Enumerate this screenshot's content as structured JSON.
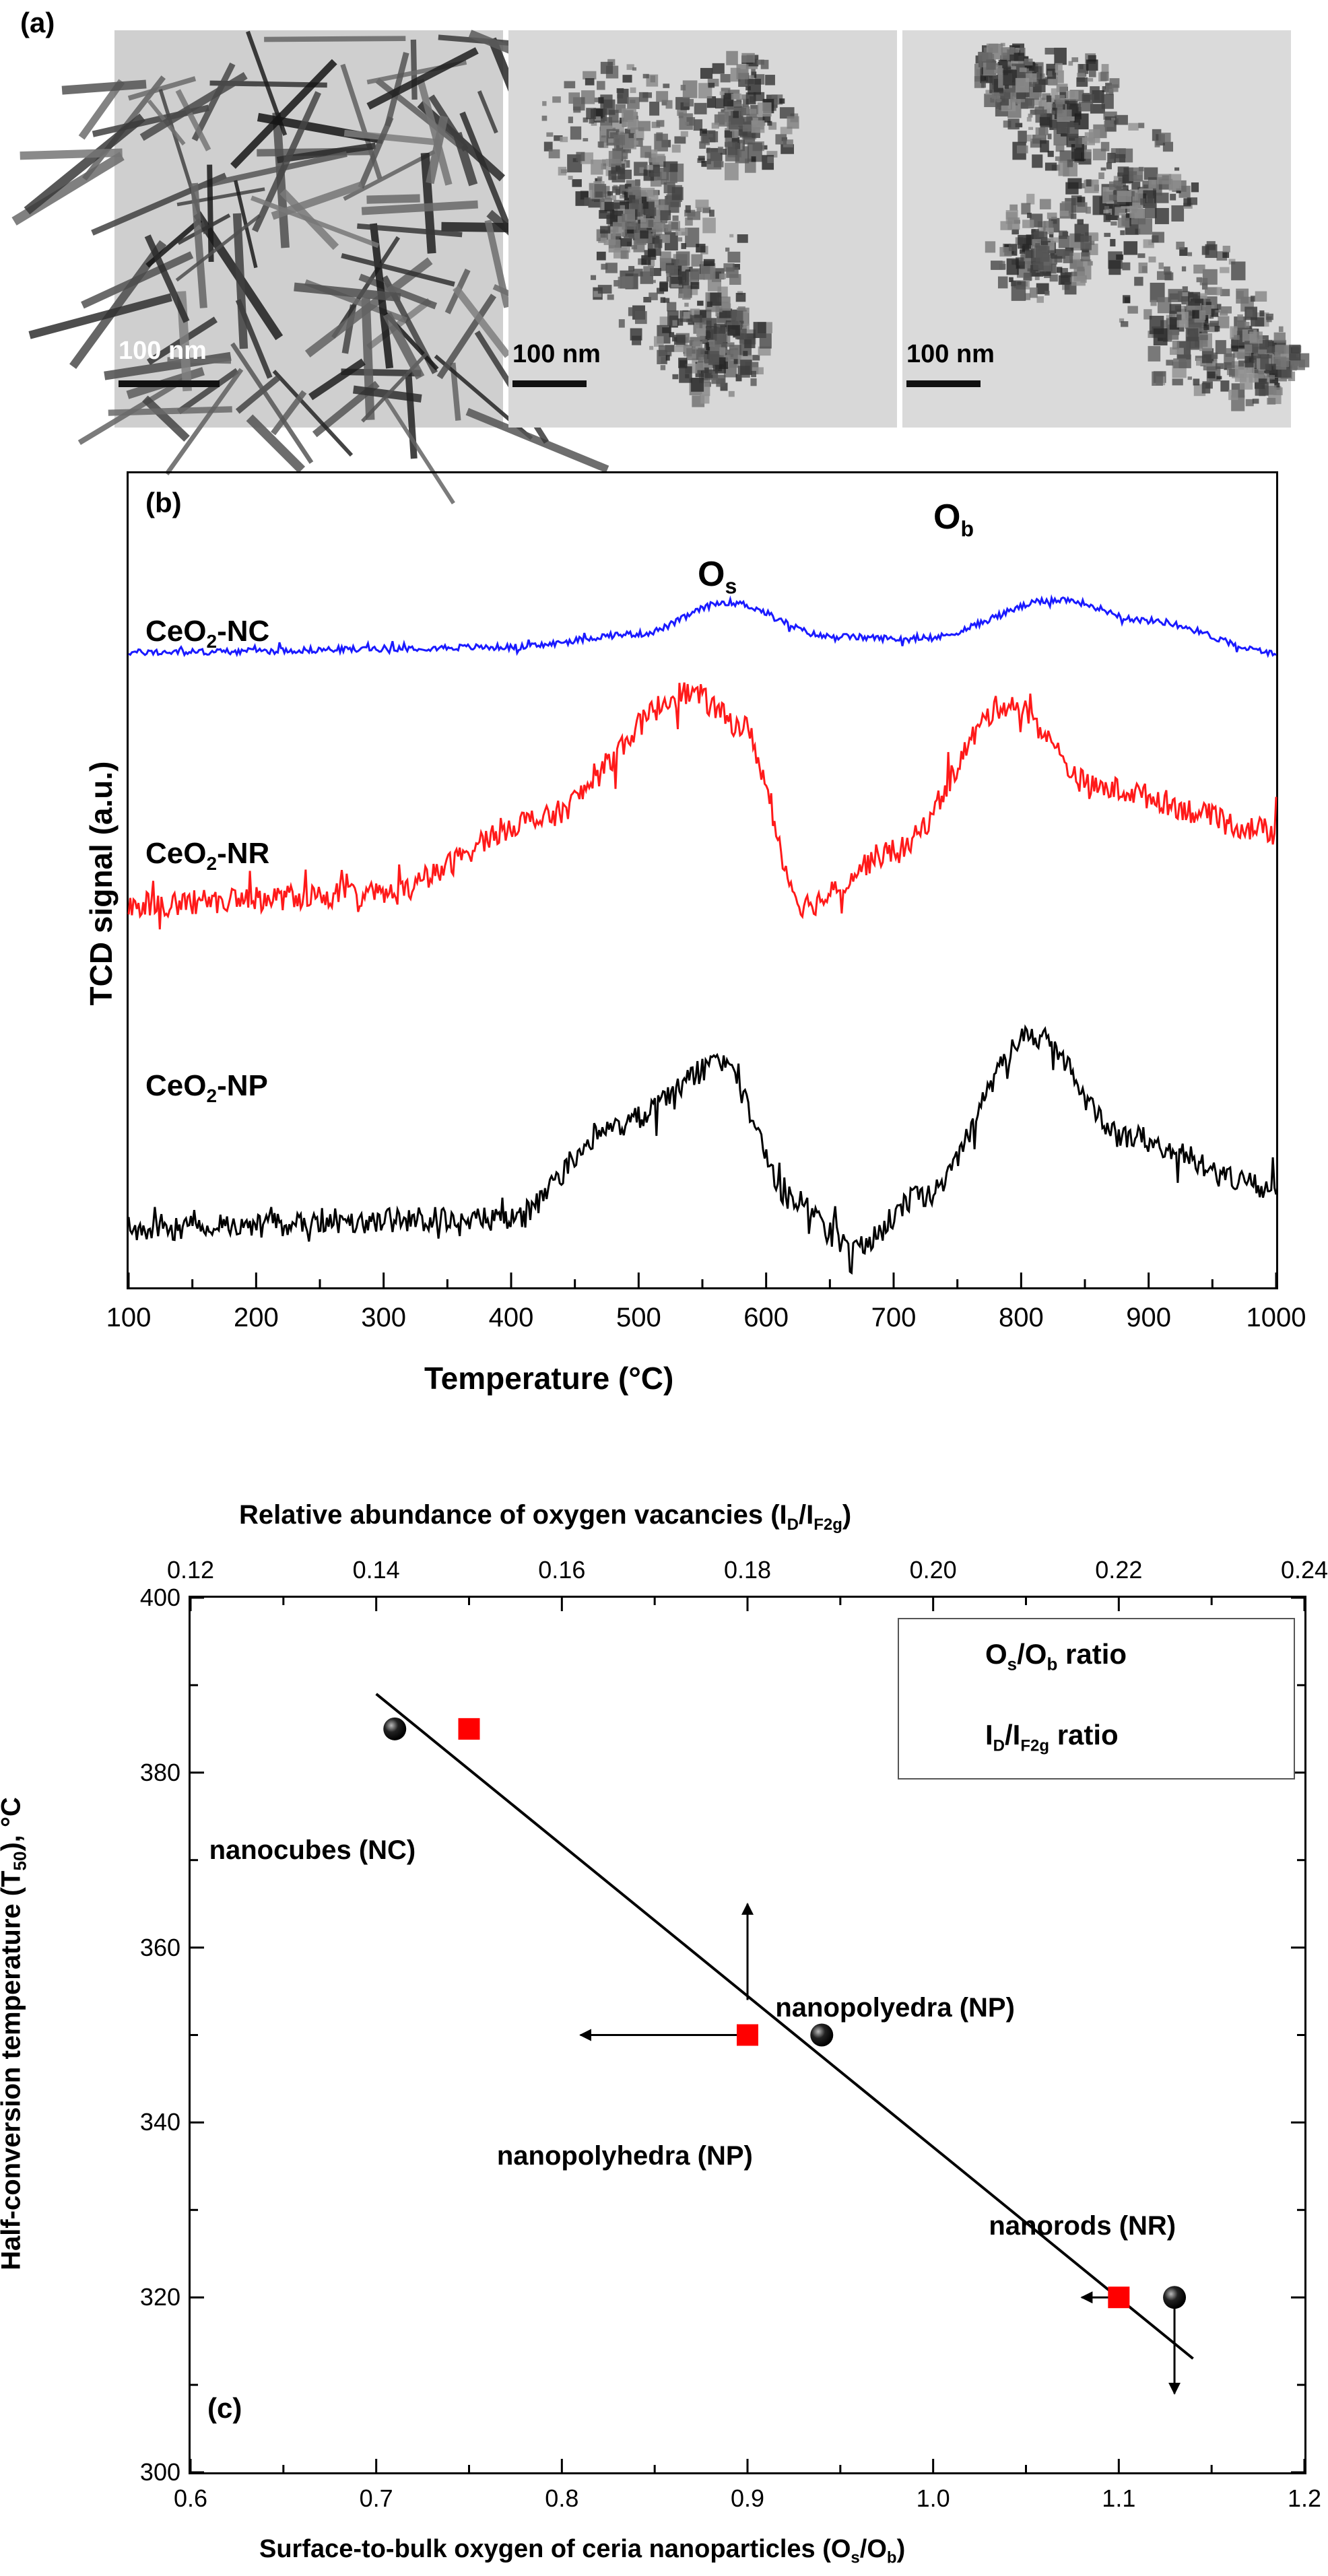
{
  "panel_a": {
    "label": "(a)",
    "images": [
      {
        "name": "nanorods micrograph",
        "scale_bar": "100 nm"
      },
      {
        "name": "nanopolyhedra micrograph",
        "scale_bar": "100 nm"
      },
      {
        "name": "nanocubes micrograph",
        "scale_bar": "100 nm"
      }
    ]
  },
  "colors": {
    "nc": "#1a1aff",
    "nr": "#ff1a1a",
    "np": "#000000",
    "marker_square": "#ff0000",
    "marker_sphere": "#111111"
  },
  "chart_data": [
    {
      "type": "line",
      "panel": "(b)",
      "xlabel": "Temperature (°C)",
      "ylabel": "TCD signal (a.u.)",
      "xlim": [
        100,
        1000
      ],
      "x_ticks": [
        "100",
        "200",
        "300",
        "400",
        "500",
        "600",
        "700",
        "800",
        "900",
        "1000"
      ],
      "peak_labels": [
        {
          "main": "O",
          "sub": "s",
          "x": 590
        },
        {
          "main": "O",
          "sub": "b",
          "x": 830
        }
      ],
      "series": [
        {
          "name": "CeO2-NC",
          "label_main": "CeO",
          "label_sub": "2",
          "label_rest": "-NC",
          "color": "#1a1aff",
          "offset": 0.78,
          "amp": 0.065,
          "peaks": [
            [
              590,
              0.3,
              45
            ],
            [
              820,
              1.0,
              95
            ]
          ],
          "points": [
            [
              100,
              0
            ],
            [
              400,
              0.1
            ],
            [
              500,
              0.35
            ],
            [
              570,
              0.95
            ],
            [
              650,
              0.3
            ],
            [
              720,
              0.25
            ],
            [
              830,
              1.0
            ],
            [
              900,
              0.6
            ],
            [
              1000,
              0.0
            ]
          ]
        },
        {
          "name": "CeO2-NR",
          "label_main": "CeO",
          "label_sub": "2",
          "label_rest": "-NR",
          "color": "#ff1a1a",
          "offset": 0.47,
          "amp": 0.26,
          "points": [
            [
              100,
              0.0
            ],
            [
              300,
              0.05
            ],
            [
              420,
              0.4
            ],
            [
              540,
              1.0
            ],
            [
              580,
              0.85
            ],
            [
              630,
              0.0
            ],
            [
              700,
              0.25
            ],
            [
              790,
              0.95
            ],
            [
              860,
              0.55
            ],
            [
              1000,
              0.35
            ]
          ]
        },
        {
          "name": "CeO2-NP",
          "label_main": "CeO",
          "label_sub": "2",
          "label_rest": "-NP",
          "color": "#000000",
          "offset": 0.06,
          "amp": 0.25,
          "points": [
            [
              100,
              0.05
            ],
            [
              400,
              0.1
            ],
            [
              480,
              0.55
            ],
            [
              565,
              0.85
            ],
            [
              620,
              0.2
            ],
            [
              670,
              -0.05
            ],
            [
              720,
              0.2
            ],
            [
              810,
              1.0
            ],
            [
              880,
              0.5
            ],
            [
              1000,
              0.25
            ]
          ]
        }
      ]
    },
    {
      "type": "scatter",
      "panel": "(c)",
      "xlabel": "Surface-to-bulk oxygen of ceria nanoparticles (Os/Ob)",
      "xlabel_parts": {
        "pre": "Surface-to-bulk oxygen of ceria nanoparticles (O",
        "sub1": "s",
        "mid": "/O",
        "sub2": "b",
        "post": ")"
      },
      "ylabel_parts": {
        "pre": "Half-conversion temperature (T",
        "sub": "50",
        "post": "), °C"
      },
      "x2label_parts": {
        "pre": "Relative abundance of oxygen vacancies (I",
        "sub1": "D",
        "mid": "/I",
        "sub2": "F2g",
        "post": ")"
      },
      "xlim": [
        0.6,
        1.2
      ],
      "ylim": [
        300,
        400
      ],
      "x2lim": [
        0.12,
        0.24
      ],
      "x_ticks": [
        "0.6",
        "0.7",
        "0.8",
        "0.9",
        "1.0",
        "1.1",
        "1.2"
      ],
      "y_ticks": [
        "300",
        "320",
        "340",
        "360",
        "380",
        "400"
      ],
      "x2_ticks": [
        "0.12",
        "0.14",
        "0.16",
        "0.18",
        "0.20",
        "0.22",
        "0.24"
      ],
      "series": [
        {
          "name": "Os/Ob ratio",
          "legend_parts": {
            "pre": "O",
            "sub1": "s",
            "mid": "/O",
            "sub2": "b",
            "post": " ratio"
          },
          "marker": "sphere",
          "x": [
            0.71,
            0.94,
            1.13
          ],
          "y": [
            385,
            350,
            320
          ]
        },
        {
          "name": "ID/IF2g ratio",
          "legend_parts": {
            "pre": "I",
            "sub1": "D",
            "mid": "/I",
            "sub2": "F2g",
            "post": " ratio"
          },
          "marker": "square",
          "x": [
            0.75,
            0.9,
            1.1
          ],
          "y": [
            385,
            350,
            320
          ]
        }
      ],
      "fit_line": {
        "x": [
          0.7,
          1.14
        ],
        "y": [
          389,
          313
        ]
      },
      "arrows": [
        {
          "from": [
            0.9,
            354
          ],
          "to": [
            0.9,
            365
          ]
        },
        {
          "from": [
            0.9,
            350
          ],
          "to": [
            0.81,
            350
          ]
        },
        {
          "from": [
            1.13,
            320
          ],
          "to": [
            1.13,
            309
          ]
        },
        {
          "from": [
            1.1,
            320
          ],
          "to": [
            1.08,
            320
          ]
        }
      ],
      "annotations": [
        {
          "text": "nanocubes (NC)",
          "x": 0.61,
          "y": 371
        },
        {
          "text": "nanopolyedra (NP)",
          "x": 0.915,
          "y": 353
        },
        {
          "text": "nanopolyhedra (NP)",
          "x": 0.765,
          "y": 336
        },
        {
          "text": "nanorods (NR)",
          "x": 1.03,
          "y": 328
        }
      ],
      "panel_label": "(c)"
    }
  ]
}
